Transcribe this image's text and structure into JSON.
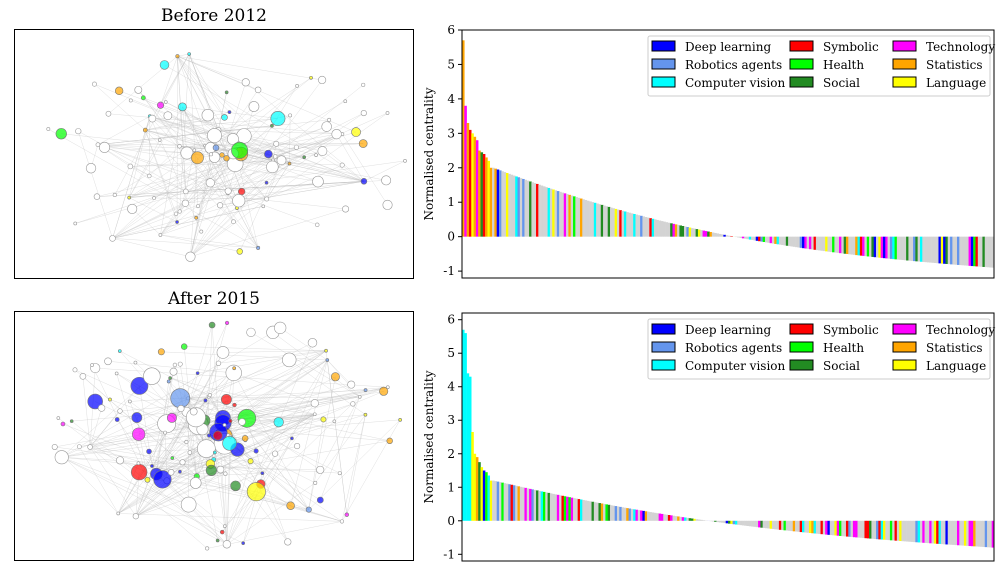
{
  "network_titles": [
    "Before 2012",
    "After 2015"
  ],
  "legend_items": [
    {
      "label": "Deep learning",
      "color": "#0000ff"
    },
    {
      "label": "Symbolic",
      "color": "#ff0000"
    },
    {
      "label": "Technology",
      "color": "#ff00ff"
    },
    {
      "label": "Robotics agents",
      "color": "#6495ed"
    },
    {
      "label": "Health",
      "color": "#00ff00"
    },
    {
      "label": "Statistics",
      "color": "#ffa500"
    },
    {
      "label": "Computer vision",
      "color": "#00ffff"
    },
    {
      "label": "Social",
      "color": "#228b22"
    },
    {
      "label": "Language",
      "color": "#ffff00"
    }
  ],
  "chart_data": [
    {
      "type": "bar",
      "panel": "before-2012",
      "ylabel": "Normalised centrality",
      "ylim": [
        -1.2,
        6
      ],
      "yticks": [
        -1,
        0,
        1,
        2,
        3,
        4,
        5,
        6
      ],
      "legend_position": "upper-right",
      "n_bars": 230,
      "leading_bars": [
        {
          "value": 5.7,
          "category": "Statistics"
        },
        {
          "value": 3.8,
          "category": "Technology"
        },
        {
          "value": 3.3,
          "category": "Statistics"
        },
        {
          "value": 3.1,
          "category": "Symbolic"
        },
        {
          "value": 3.0,
          "category": "Language"
        },
        {
          "value": 2.9,
          "category": "Statistics"
        },
        {
          "value": 2.8,
          "category": "Technology"
        },
        {
          "value": 2.5,
          "category": "Statistics"
        },
        {
          "value": 2.45,
          "category": "Social"
        },
        {
          "value": 2.4,
          "category": "Symbolic"
        },
        {
          "value": 2.3,
          "category": "Statistics"
        },
        {
          "value": 2.2,
          "category": "Language"
        },
        {
          "value": 2.0,
          "category": "Statistics"
        }
      ],
      "min_value": -0.9
    },
    {
      "type": "bar",
      "panel": "after-2015",
      "ylabel": "Normalised centrality",
      "ylim": [
        -1.2,
        6.2
      ],
      "yticks": [
        -1,
        0,
        1,
        2,
        3,
        4,
        5,
        6
      ],
      "legend_position": "upper-right",
      "n_bars": 230,
      "leading_bars": [
        {
          "value": 5.7,
          "category": "Computer vision"
        },
        {
          "value": 5.6,
          "category": "Computer vision"
        },
        {
          "value": 4.4,
          "category": "Computer vision"
        },
        {
          "value": 4.3,
          "category": "Computer vision"
        },
        {
          "value": 2.65,
          "category": "Language"
        },
        {
          "value": 2.0,
          "category": "Language"
        },
        {
          "value": 1.9,
          "category": "Statistics"
        },
        {
          "value": 1.75,
          "category": "Social"
        },
        {
          "value": 1.6,
          "category": "Language"
        },
        {
          "value": 1.5,
          "category": "Deep learning"
        },
        {
          "value": 1.45,
          "category": "Health"
        },
        {
          "value": 1.35,
          "category": "Computer vision"
        },
        {
          "value": 1.2,
          "category": "Language"
        }
      ],
      "min_value": -0.8
    }
  ]
}
